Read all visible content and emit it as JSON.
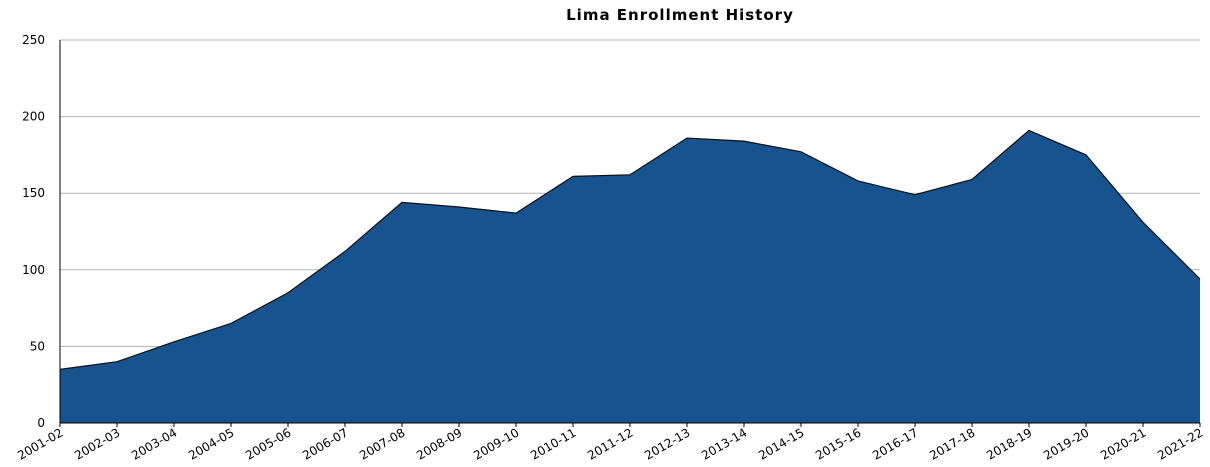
{
  "chart_data": {
    "type": "area",
    "title": "Lima Enrollment History",
    "categories": [
      "2001-02",
      "2002-03",
      "2003-04",
      "2004-05",
      "2005-06",
      "2006-07",
      "2007-08",
      "2008-09",
      "2009-10",
      "2010-11",
      "2011-12",
      "2012-13",
      "2013-14",
      "2014-15",
      "2015-16",
      "2016-17",
      "2017-18",
      "2018-19",
      "2019-20",
      "2020-21",
      "2021-22"
    ],
    "values": [
      35,
      40,
      53,
      65,
      85,
      112,
      144,
      141,
      137,
      161,
      162,
      186,
      184,
      177,
      158,
      149,
      159,
      191,
      175,
      131,
      94
    ],
    "color": "#17548f",
    "ylim": [
      0,
      250
    ],
    "yticks": [
      0,
      50,
      100,
      150,
      200,
      250
    ],
    "grid": true
  }
}
